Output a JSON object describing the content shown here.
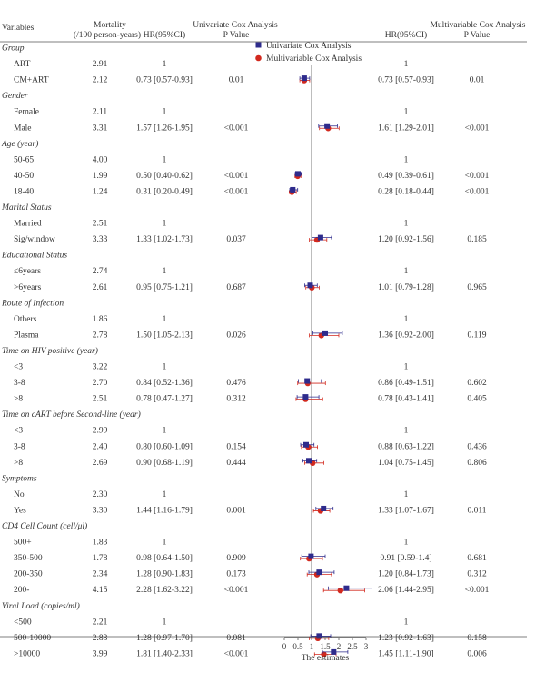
{
  "headers": {
    "variables": "Variables",
    "mortality_l1": "Mortality",
    "mortality_l2": "(/100 person-years)",
    "uni_title": "Univariate Cox Analysis",
    "uni_hr": "HR(95%CI)",
    "uni_p": "P Value",
    "multi_title": "Multivariable Cox Analysis",
    "multi_hr": "HR(95%CI)",
    "multi_p": "P Value"
  },
  "rows": [
    {
      "type": "group",
      "label": "Group"
    },
    {
      "type": "row",
      "label": "ART",
      "mort": "2.91",
      "uni_hr": "1",
      "uni_p": "",
      "multi_hr": "1",
      "multi_p": ""
    },
    {
      "type": "row",
      "label": "CM+ART",
      "mort": "2.12",
      "uni_hr": "0.73 [0.57-0.93]",
      "uni_p": "0.01",
      "multi_hr": "0.73 [0.57-0.93]",
      "multi_p": "0.01"
    },
    {
      "type": "group",
      "label": "Gender"
    },
    {
      "type": "row",
      "label": "Female",
      "mort": "2.11",
      "uni_hr": "1",
      "uni_p": "",
      "multi_hr": "1",
      "multi_p": ""
    },
    {
      "type": "row",
      "label": "Male",
      "mort": "3.31",
      "uni_hr": "1.57 [1.26-1.95]",
      "uni_p": "<0.001",
      "multi_hr": "1.61 [1.29-2.01]",
      "multi_p": "<0.001"
    },
    {
      "type": "group",
      "label": "Age (year)"
    },
    {
      "type": "row",
      "label": "50-65",
      "mort": "4.00",
      "uni_hr": "1",
      "uni_p": "",
      "multi_hr": "1",
      "multi_p": ""
    },
    {
      "type": "row",
      "label": "40-50",
      "mort": "1.99",
      "uni_hr": "0.50 [0.40-0.62]",
      "uni_p": "<0.001",
      "multi_hr": "0.49 [0.39-0.61]",
      "multi_p": "<0.001"
    },
    {
      "type": "row",
      "label": "18-40",
      "mort": "1.24",
      "uni_hr": "0.31 [0.20-0.49]",
      "uni_p": "<0.001",
      "multi_hr": "0.28 [0.18-0.44]",
      "multi_p": "<0.001"
    },
    {
      "type": "group",
      "label": "Marital Status"
    },
    {
      "type": "row",
      "label": "Married",
      "mort": "2.51",
      "uni_hr": "1",
      "uni_p": "",
      "multi_hr": "1",
      "multi_p": ""
    },
    {
      "type": "row",
      "label": "Sig/window",
      "mort": "3.33",
      "uni_hr": "1.33 [1.02-1.73]",
      "uni_p": "0.037",
      "multi_hr": "1.20 [0.92-1.56]",
      "multi_p": "0.185"
    },
    {
      "type": "group",
      "label": "Educational Status"
    },
    {
      "type": "row",
      "label": "≤6years",
      "mort": "2.74",
      "uni_hr": "1",
      "uni_p": "",
      "multi_hr": "1",
      "multi_p": ""
    },
    {
      "type": "row",
      "label": ">6years",
      "mort": "2.61",
      "uni_hr": "0.95 [0.75-1.21]",
      "uni_p": "0.687",
      "multi_hr": "1.01 [0.79-1.28]",
      "multi_p": "0.965"
    },
    {
      "type": "group",
      "label": "Route of Infection"
    },
    {
      "type": "row",
      "label": "Others",
      "mort": "1.86",
      "uni_hr": "1",
      "uni_p": "",
      "multi_hr": "1",
      "multi_p": ""
    },
    {
      "type": "row",
      "label": "Plasma",
      "mort": "2.78",
      "uni_hr": "1.50 [1.05-2.13]",
      "uni_p": "0.026",
      "multi_hr": "1.36 [0.92-2.00]",
      "multi_p": "0.119"
    },
    {
      "type": "group",
      "label": "Time on HIV positive (year)"
    },
    {
      "type": "row",
      "label": "<3",
      "mort": "3.22",
      "uni_hr": "1",
      "uni_p": "",
      "multi_hr": "1",
      "multi_p": ""
    },
    {
      "type": "row",
      "label": "3-8",
      "mort": "2.70",
      "uni_hr": "0.84 [0.52-1.36]",
      "uni_p": "0.476",
      "multi_hr": "0.86 [0.49-1.51]",
      "multi_p": "0.602"
    },
    {
      "type": "row",
      "label": ">8",
      "mort": "2.51",
      "uni_hr": "0.78 [0.47-1.27]",
      "uni_p": "0.312",
      "multi_hr": "0.78 [0.43-1.41]",
      "multi_p": "0.405"
    },
    {
      "type": "group",
      "label": "Time on cART before Second-line (year)"
    },
    {
      "type": "row",
      "label": "<3",
      "mort": "2.99",
      "uni_hr": "1",
      "uni_p": "",
      "multi_hr": "1",
      "multi_p": ""
    },
    {
      "type": "row",
      "label": "3-8",
      "mort": "2.40",
      "uni_hr": "0.80 [0.60-1.09]",
      "uni_p": "0.154",
      "multi_hr": "0.88 [0.63-1.22]",
      "multi_p": "0.436"
    },
    {
      "type": "row",
      "label": ">8",
      "mort": "2.69",
      "uni_hr": "0.90 [0.68-1.19]",
      "uni_p": "0.444",
      "multi_hr": "1.04 [0.75-1.45]",
      "multi_p": "0.806"
    },
    {
      "type": "group",
      "label": "Symptoms"
    },
    {
      "type": "row",
      "label": "No",
      "mort": "2.30",
      "uni_hr": "1",
      "uni_p": "",
      "multi_hr": "1",
      "multi_p": ""
    },
    {
      "type": "row",
      "label": "Yes",
      "mort": "3.30",
      "uni_hr": "1.44 [1.16-1.79]",
      "uni_p": "0.001",
      "multi_hr": "1.33 [1.07-1.67]",
      "multi_p": "0.011"
    },
    {
      "type": "group",
      "label": "CD4 Cell Count (cell/μl)"
    },
    {
      "type": "row",
      "label": "500+",
      "mort": "1.83",
      "uni_hr": "1",
      "uni_p": "",
      "multi_hr": "1",
      "multi_p": ""
    },
    {
      "type": "row",
      "label": "350-500",
      "mort": "1.78",
      "uni_hr": "0.98 [0.64-1.50]",
      "uni_p": "0.909",
      "multi_hr": "0.91 [0.59-1.4]",
      "multi_p": "0.681"
    },
    {
      "type": "row",
      "label": "200-350",
      "mort": "2.34",
      "uni_hr": "1.28 [0.90-1.83]",
      "uni_p": "0.173",
      "multi_hr": "1.20 [0.84-1.73]",
      "multi_p": "0.312"
    },
    {
      "type": "row",
      "label": "200-",
      "mort": "4.15",
      "uni_hr": "2.28 [1.62-3.22]",
      "uni_p": "<0.001",
      "multi_hr": "2.06 [1.44-2.95]",
      "multi_p": "<0.001"
    },
    {
      "type": "group",
      "label": "Viral Load (copies/ml)"
    },
    {
      "type": "row",
      "label": "<500",
      "mort": "2.21",
      "uni_hr": "1",
      "uni_p": "",
      "multi_hr": "1",
      "multi_p": ""
    },
    {
      "type": "row",
      "label": "500-10000",
      "mort": "2.83",
      "uni_hr": "1.28 [0.97-1.70]",
      "uni_p": "0.081",
      "multi_hr": "1.23 [0.92-1.63]",
      "multi_p": "0.158"
    },
    {
      "type": "row",
      "label": ">10000",
      "mort": "3.99",
      "uni_hr": "1.81 [1.40-2.33]",
      "uni_p": "<0.001",
      "multi_hr": "1.45 [1.11-1.90]",
      "multi_p": "0.006"
    }
  ],
  "chart_data": {
    "type": "forest",
    "xlabel": "The estimates",
    "xlim": [
      0,
      3
    ],
    "xticks": [
      "0",
      "0.5",
      "1",
      "1.5",
      "2",
      "2.5",
      "3"
    ],
    "reference_line": 1,
    "legend": [
      {
        "name": "Univariate Cox Analysis",
        "marker": "square",
        "color": "#2e2b8c"
      },
      {
        "name": "Multivariable Cox Analysis",
        "marker": "circle",
        "color": "#d2291e"
      }
    ],
    "legend_position": "top",
    "series": [
      {
        "name": "Univariate Cox Analysis",
        "color": "#2e2b8c",
        "marker": "square",
        "points": [
          {
            "row": 2,
            "est": 0.73,
            "lo": 0.57,
            "hi": 0.93
          },
          {
            "row": 5,
            "est": 1.57,
            "lo": 1.26,
            "hi": 1.95
          },
          {
            "row": 8,
            "est": 0.5,
            "lo": 0.4,
            "hi": 0.62
          },
          {
            "row": 9,
            "est": 0.31,
            "lo": 0.2,
            "hi": 0.49
          },
          {
            "row": 12,
            "est": 1.33,
            "lo": 1.02,
            "hi": 1.73
          },
          {
            "row": 15,
            "est": 0.95,
            "lo": 0.75,
            "hi": 1.21
          },
          {
            "row": 18,
            "est": 1.5,
            "lo": 1.05,
            "hi": 2.13
          },
          {
            "row": 21,
            "est": 0.84,
            "lo": 0.52,
            "hi": 1.36
          },
          {
            "row": 22,
            "est": 0.78,
            "lo": 0.47,
            "hi": 1.27
          },
          {
            "row": 25,
            "est": 0.8,
            "lo": 0.6,
            "hi": 1.09
          },
          {
            "row": 26,
            "est": 0.9,
            "lo": 0.68,
            "hi": 1.19
          },
          {
            "row": 29,
            "est": 1.44,
            "lo": 1.16,
            "hi": 1.79
          },
          {
            "row": 32,
            "est": 0.98,
            "lo": 0.64,
            "hi": 1.5
          },
          {
            "row": 33,
            "est": 1.28,
            "lo": 0.9,
            "hi": 1.83
          },
          {
            "row": 34,
            "est": 2.28,
            "lo": 1.62,
            "hi": 3.22
          },
          {
            "row": 37,
            "est": 1.28,
            "lo": 0.97,
            "hi": 1.7
          },
          {
            "row": 38,
            "est": 1.81,
            "lo": 1.4,
            "hi": 2.33
          }
        ]
      },
      {
        "name": "Multivariable Cox Analysis",
        "color": "#d2291e",
        "marker": "circle",
        "points": [
          {
            "row": 2,
            "est": 0.73,
            "lo": 0.57,
            "hi": 0.93
          },
          {
            "row": 5,
            "est": 1.61,
            "lo": 1.29,
            "hi": 2.01
          },
          {
            "row": 8,
            "est": 0.49,
            "lo": 0.39,
            "hi": 0.61
          },
          {
            "row": 9,
            "est": 0.28,
            "lo": 0.18,
            "hi": 0.44
          },
          {
            "row": 12,
            "est": 1.2,
            "lo": 0.92,
            "hi": 1.56
          },
          {
            "row": 15,
            "est": 1.01,
            "lo": 0.79,
            "hi": 1.28
          },
          {
            "row": 18,
            "est": 1.36,
            "lo": 0.92,
            "hi": 2.0
          },
          {
            "row": 21,
            "est": 0.86,
            "lo": 0.49,
            "hi": 1.51
          },
          {
            "row": 22,
            "est": 0.78,
            "lo": 0.43,
            "hi": 1.41
          },
          {
            "row": 25,
            "est": 0.88,
            "lo": 0.63,
            "hi": 1.22
          },
          {
            "row": 26,
            "est": 1.04,
            "lo": 0.75,
            "hi": 1.45
          },
          {
            "row": 29,
            "est": 1.33,
            "lo": 1.07,
            "hi": 1.67
          },
          {
            "row": 32,
            "est": 0.91,
            "lo": 0.59,
            "hi": 1.4
          },
          {
            "row": 33,
            "est": 1.2,
            "lo": 0.84,
            "hi": 1.73
          },
          {
            "row": 34,
            "est": 2.06,
            "lo": 1.44,
            "hi": 2.95
          },
          {
            "row": 37,
            "est": 1.23,
            "lo": 0.92,
            "hi": 1.63
          },
          {
            "row": 38,
            "est": 1.45,
            "lo": 1.11,
            "hi": 1.9
          }
        ]
      }
    ]
  }
}
